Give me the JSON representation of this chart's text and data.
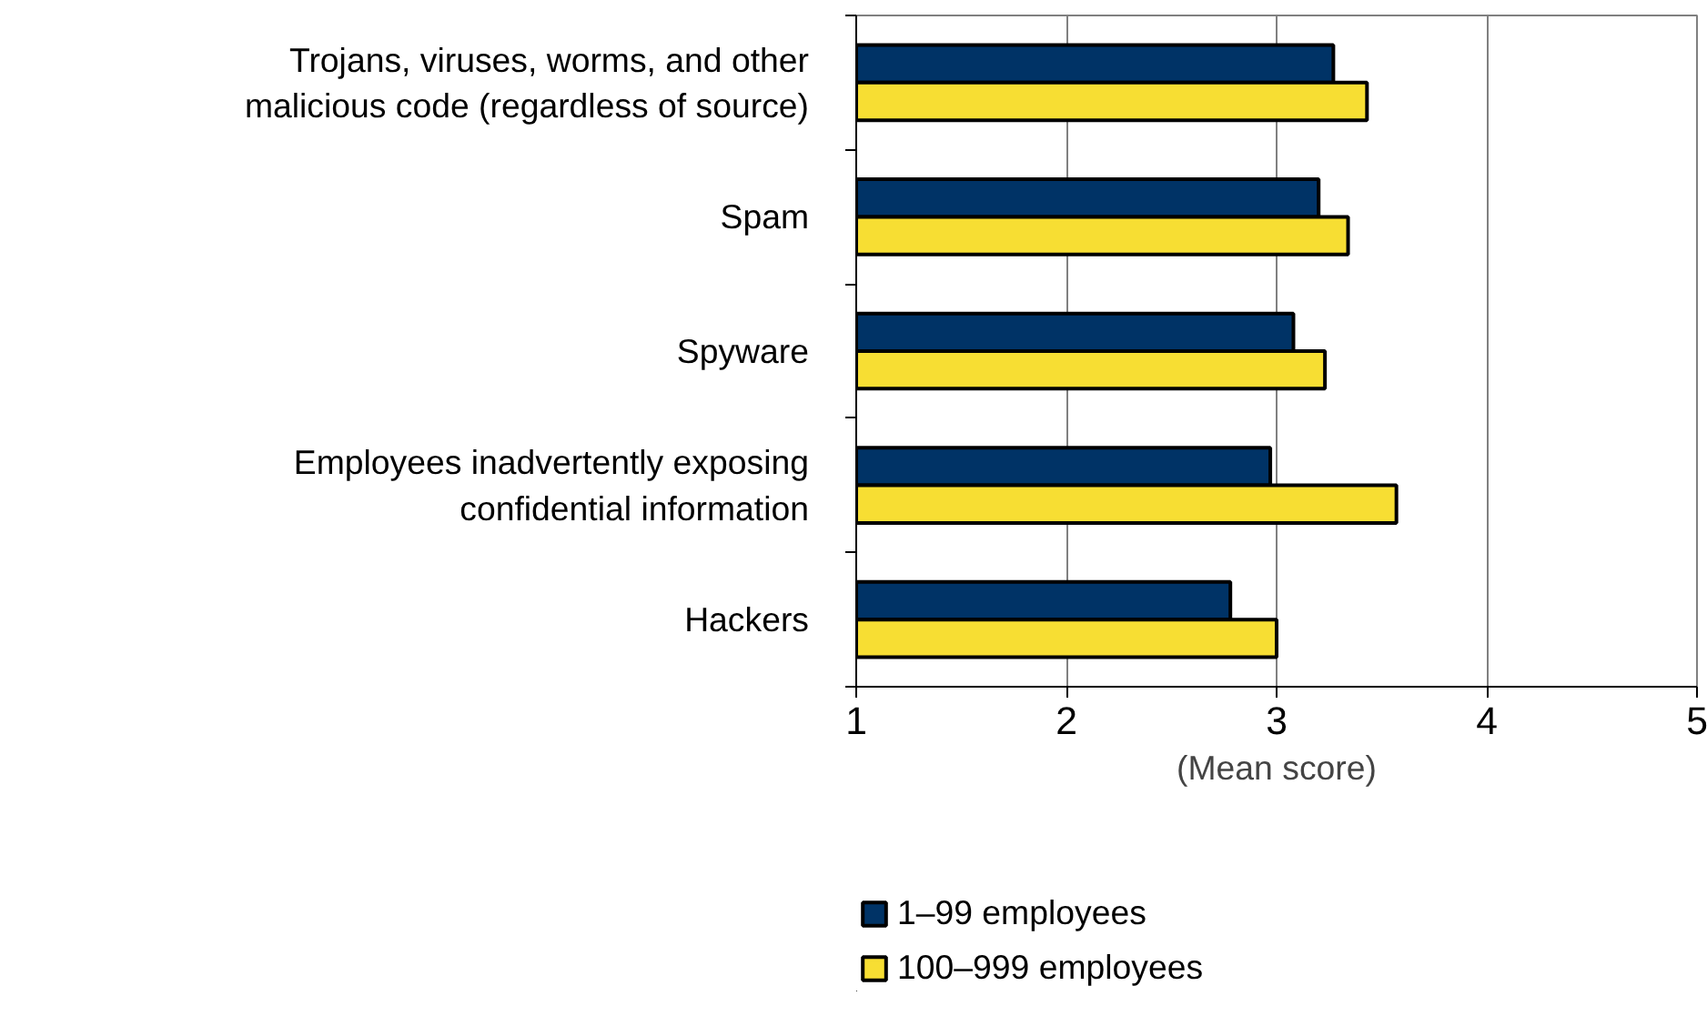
{
  "chart_data": {
    "type": "bar",
    "orientation": "horizontal",
    "xlabel": "(Mean score)",
    "categories": [
      "Trojans, viruses, worms, and other\nmalicious code (regardless of source)",
      "Spam",
      "Spyware",
      "Employees inadvertently exposing\nconfidential information",
      "Hackers"
    ],
    "series": [
      {
        "name": "1–99 employees",
        "color": "#003366",
        "values": [
          3.27,
          3.2,
          3.08,
          2.97,
          2.78
        ]
      },
      {
        "name": "100–999 employees",
        "color": "#f7de33",
        "values": [
          3.43,
          3.34,
          3.23,
          3.57,
          3.0
        ]
      }
    ],
    "xlim": [
      1,
      5
    ],
    "xticks": [
      1,
      2,
      3,
      4,
      5
    ],
    "grid": "x",
    "legend": "bottom"
  }
}
